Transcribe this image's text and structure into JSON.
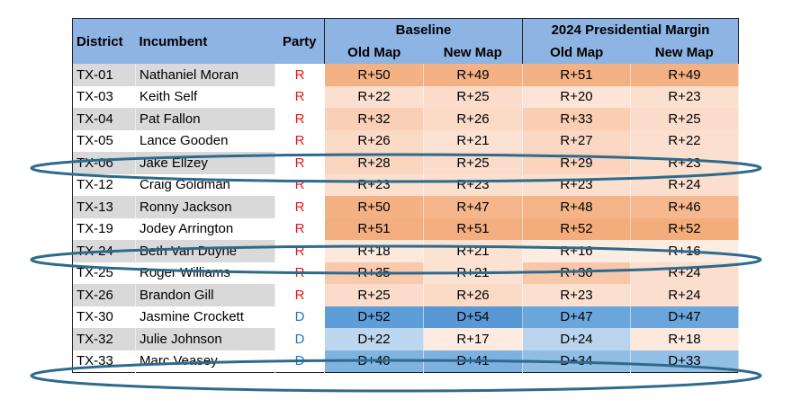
{
  "table": {
    "header": {
      "district": "District",
      "incumbent": "Incumbent",
      "party": "Party",
      "group_1": "Baseline",
      "group_2": "2024 Presidential Margin",
      "sub": [
        "Old Map",
        "New Map",
        "Old Map",
        "New Map"
      ]
    },
    "header_color": "#8eb4e3",
    "rows": [
      {
        "district": "TX-01",
        "incumbent": "Nathaniel Moran",
        "party": "R",
        "party_color": "#e8141b",
        "shade": "#d9d9d9",
        "cells": [
          "R+50",
          "R+49",
          "R+51",
          "R+49"
        ],
        "fills": [
          "#f4b183",
          "#f4b183",
          "#f4b183",
          "#f4b183"
        ]
      },
      {
        "district": "TX-03",
        "incumbent": "Keith Self",
        "party": "R",
        "party_color": "#e8141b",
        "shade": "#ffffff",
        "cells": [
          "R+22",
          "R+25",
          "R+20",
          "R+23"
        ],
        "fills": [
          "#fbe0d0",
          "#fbdccb",
          "#fce4d6",
          "#fbe0d0"
        ]
      },
      {
        "district": "TX-04",
        "incumbent": "Pat Fallon",
        "party": "R",
        "party_color": "#e8141b",
        "shade": "#d9d9d9",
        "cells": [
          "R+32",
          "R+26",
          "R+33",
          "R+25"
        ],
        "fills": [
          "#f9d0b6",
          "#fbdac6",
          "#f9ceb3",
          "#fbdccb"
        ]
      },
      {
        "district": "TX-05",
        "incumbent": "Lance Gooden",
        "party": "R",
        "party_color": "#e8141b",
        "shade": "#ffffff",
        "cells": [
          "R+26",
          "R+21",
          "R+27",
          "R+22"
        ],
        "fills": [
          "#fbdac6",
          "#fce2d3",
          "#fad8c3",
          "#fbe0d0"
        ]
      },
      {
        "district": "TX-06",
        "incumbent": "Jake Ellzey",
        "party": "R",
        "party_color": "#e8141b",
        "shade": "#d9d9d9",
        "cells": [
          "R+28",
          "R+25",
          "R+29",
          "R+23"
        ],
        "fills": [
          "#fad6c0",
          "#fbdccb",
          "#fad4bd",
          "#fbe0d0"
        ]
      },
      {
        "district": "TX-12",
        "incumbent": "Craig Goldman",
        "party": "R",
        "party_color": "#e8141b",
        "shade": "#ffffff",
        "cells": [
          "R+23",
          "R+23",
          "R+23",
          "R+24"
        ],
        "fills": [
          "#fbe0d0",
          "#fbe0d0",
          "#fbe0d0",
          "#fbdecd"
        ]
      },
      {
        "district": "TX-13",
        "incumbent": "Ronny Jackson",
        "party": "R",
        "party_color": "#e8141b",
        "shade": "#d9d9d9",
        "cells": [
          "R+50",
          "R+47",
          "R+48",
          "R+46"
        ],
        "fills": [
          "#f4b183",
          "#f5b68b",
          "#f5b487",
          "#f6b98f"
        ]
      },
      {
        "district": "TX-19",
        "incumbent": "Jodey Arrington",
        "party": "R",
        "party_color": "#e8141b",
        "shade": "#ffffff",
        "cells": [
          "R+51",
          "R+51",
          "R+52",
          "R+52"
        ],
        "fills": [
          "#f3ae7f",
          "#f3ae7f",
          "#f3ac7c",
          "#f3ac7c"
        ]
      },
      {
        "district": "TX-24",
        "incumbent": "Beth Van Duyne",
        "party": "R",
        "party_color": "#e8141b",
        "shade": "#d9d9d9",
        "cells": [
          "R+18",
          "R+21",
          "R+16",
          "R+16"
        ],
        "fills": [
          "#fde8dc",
          "#fce2d3",
          "#fdece2",
          "#fdece2"
        ]
      },
      {
        "district": "TX-25",
        "incumbent": "Roger Williams",
        "party": "R",
        "party_color": "#e8141b",
        "shade": "#ffffff",
        "cells": [
          "R+35",
          "R+21",
          "R+36",
          "R+24"
        ],
        "fills": [
          "#f8c9ad",
          "#fce2d3",
          "#f8c7aa",
          "#fbdecd"
        ]
      },
      {
        "district": "TX-26",
        "incumbent": "Brandon Gill",
        "party": "R",
        "party_color": "#e8141b",
        "shade": "#d9d9d9",
        "cells": [
          "R+25",
          "R+26",
          "R+23",
          "R+24"
        ],
        "fills": [
          "#fbdccb",
          "#fbdac6",
          "#fbe0d0",
          "#fbdecd"
        ]
      },
      {
        "district": "TX-30",
        "incumbent": "Jasmine Crockett",
        "party": "D",
        "party_color": "#1f74c8",
        "shade": "#ffffff",
        "cells": [
          "D+52",
          "D+54",
          "D+47",
          "D+47"
        ],
        "fills": [
          "#5e9ed8",
          "#5899d5",
          "#6aa6dc",
          "#6aa6dc"
        ]
      },
      {
        "district": "TX-32",
        "incumbent": "Julie Johnson",
        "party": "D",
        "party_color": "#1f74c8",
        "shade": "#d9d9d9",
        "cells": [
          "D+22",
          "R+17",
          "D+24",
          "R+18"
        ],
        "fills": [
          "#bdd7ee",
          "#fdeae0",
          "#b9d4ec",
          "#fde8dc"
        ]
      },
      {
        "district": "TX-33",
        "incumbent": "Marc Veasey",
        "party": "D",
        "party_color": "#1f74c8",
        "shade": "#ffffff",
        "cells": [
          "D+40",
          "D+41",
          "D+34",
          "D+33"
        ],
        "fills": [
          "#7fb3e0",
          "#7db1df",
          "#8fbde4",
          "#92bfe5"
        ]
      }
    ]
  }
}
